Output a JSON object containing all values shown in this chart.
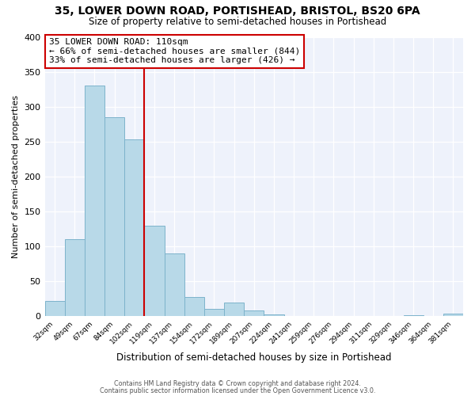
{
  "title": "35, LOWER DOWN ROAD, PORTISHEAD, BRISTOL, BS20 6PA",
  "subtitle": "Size of property relative to semi-detached houses in Portishead",
  "xlabel": "Distribution of semi-detached houses by size in Portishead",
  "ylabel": "Number of semi-detached properties",
  "bar_labels": [
    "32sqm",
    "49sqm",
    "67sqm",
    "84sqm",
    "102sqm",
    "119sqm",
    "137sqm",
    "154sqm",
    "172sqm",
    "189sqm",
    "207sqm",
    "224sqm",
    "241sqm",
    "259sqm",
    "276sqm",
    "294sqm",
    "311sqm",
    "329sqm",
    "346sqm",
    "364sqm",
    "381sqm"
  ],
  "bar_values": [
    22,
    110,
    330,
    285,
    253,
    130,
    90,
    27,
    10,
    20,
    8,
    3,
    0,
    0,
    0,
    0,
    0,
    0,
    1,
    0,
    4
  ],
  "bar_color": "#b8d9e8",
  "bar_edge_color": "#7db3cb",
  "property_line_x": 4.5,
  "property_line_color": "#cc0000",
  "annotation_title": "35 LOWER DOWN ROAD: 110sqm",
  "annotation_line1": "← 66% of semi-detached houses are smaller (844)",
  "annotation_line2": "33% of semi-detached houses are larger (426) →",
  "annotation_box_facecolor": "#ffffff",
  "annotation_box_edgecolor": "#cc0000",
  "ylim": [
    0,
    400
  ],
  "yticks": [
    0,
    50,
    100,
    150,
    200,
    250,
    300,
    350,
    400
  ],
  "footer1": "Contains HM Land Registry data © Crown copyright and database right 2024.",
  "footer2": "Contains public sector information licensed under the Open Government Licence v3.0.",
  "fig_facecolor": "#ffffff",
  "ax_facecolor": "#eef2fb",
  "grid_color": "#ffffff",
  "title_fontsize": 10,
  "subtitle_fontsize": 8.5
}
